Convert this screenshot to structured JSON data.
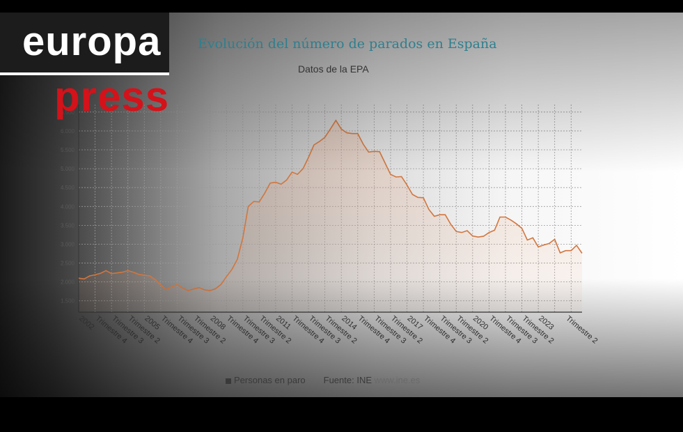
{
  "branding": {
    "word1": "europa",
    "word2": "press"
  },
  "colors": {
    "line": "#d2763e",
    "grid": "#9a9a9a",
    "logo_red": "#d4121a",
    "title": "#2f7f8e"
  },
  "legend": {
    "series_label": "Personas en paro",
    "source_prefix": "Fuente:",
    "source_name": "INE",
    "source_url": "www.ine.es"
  },
  "chart_data": {
    "type": "line",
    "title": "Evolución del número de parados en España",
    "subtitle": "Datos de la EPA",
    "ylim": [
      1200,
      6700
    ],
    "yticks": [
      1500,
      2000,
      2500,
      3000,
      3500,
      4000,
      4500,
      5000,
      5500,
      6000,
      6500
    ],
    "ytick_labels": [
      "1.500",
      "2.000",
      "2.500",
      "3.000",
      "3.500",
      "4.000",
      "4.500",
      "5.000",
      "5.500",
      "6.000",
      "6.500"
    ],
    "x_tick_labels": [
      "2002",
      "Trimestre 4",
      "Trimestre 3",
      "Trimestre 2",
      "2005",
      "Trimestre 4",
      "Trimestre 3",
      "Trimestre 2",
      "2008",
      "Trimestre 4",
      "Trimestre 3",
      "Trimestre 2",
      "2011",
      "Trimestre 4",
      "Trimestre 3",
      "Trimestre 2",
      "2014",
      "Trimestre 4",
      "Trimestre 3",
      "Trimestre 2",
      "2017",
      "Trimestre 4",
      "Trimestre 3",
      "Trimestre 2",
      "2020",
      "Trimestre 4",
      "Trimestre 3",
      "Trimestre 2",
      "2023",
      "Trimestre 2"
    ],
    "x_tick_index": [
      0,
      3,
      6,
      9,
      12,
      15,
      18,
      21,
      24,
      27,
      30,
      33,
      36,
      39,
      42,
      45,
      48,
      51,
      54,
      57,
      60,
      63,
      66,
      69,
      72,
      75,
      78,
      81,
      84,
      89
    ],
    "series": [
      {
        "name": "Personas en paro",
        "values": [
          2100,
          2080,
          2160,
          2190,
          2230,
          2300,
          2220,
          2240,
          2260,
          2300,
          2260,
          2200,
          2180,
          2160,
          2060,
          1920,
          1800,
          1870,
          1930,
          1840,
          1770,
          1810,
          1850,
          1790,
          1770,
          1820,
          1930,
          2140,
          2330,
          2600,
          3170,
          4000,
          4130,
          4120,
          4350,
          4620,
          4640,
          4590,
          4700,
          4910,
          4850,
          5000,
          5300,
          5630,
          5720,
          5830,
          6050,
          6280,
          6050,
          5950,
          5930,
          5930,
          5650,
          5440,
          5460,
          5450,
          5150,
          4850,
          4780,
          4790,
          4570,
          4320,
          4240,
          4230,
          3920,
          3740,
          3780,
          3780,
          3530,
          3340,
          3310,
          3360,
          3220,
          3190,
          3210,
          3310,
          3370,
          3720,
          3720,
          3640,
          3540,
          3420,
          3110,
          3170,
          2930,
          2980,
          3020,
          3130,
          2770,
          2830,
          2830,
          2970,
          2760
        ]
      }
    ]
  }
}
